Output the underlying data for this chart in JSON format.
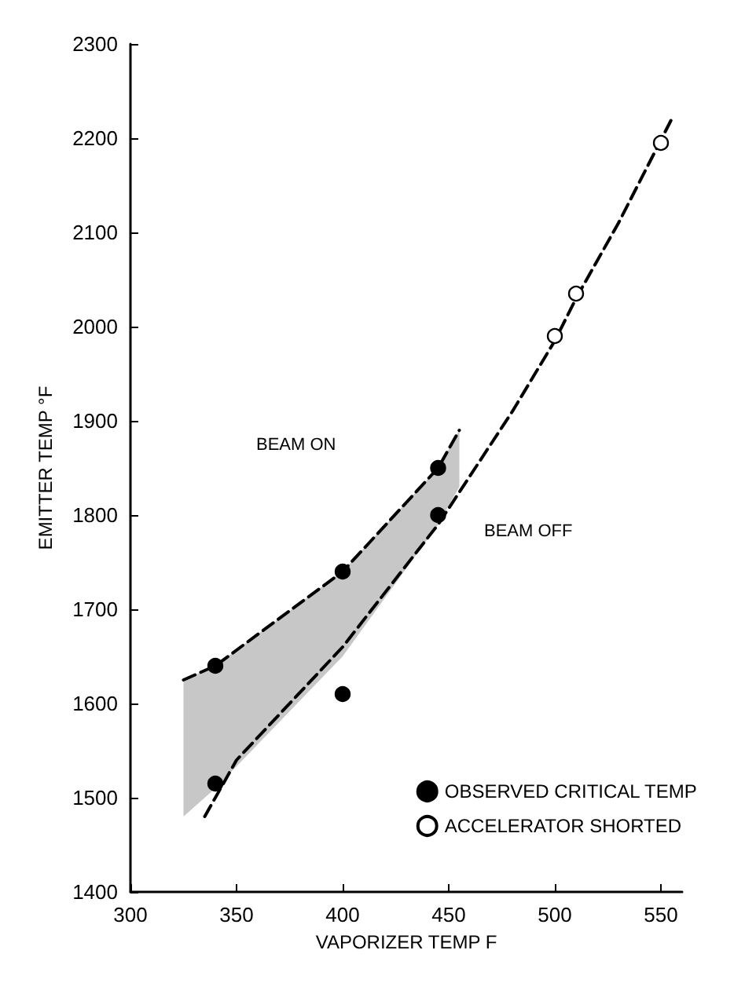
{
  "chart_data": {
    "type": "scatter",
    "xlabel": "VAPORIZER TEMP F",
    "ylabel": "EMITTER TEMP °F",
    "xlim": [
      300,
      560
    ],
    "xticks": [
      300,
      350,
      400,
      450,
      500,
      550
    ],
    "ylim": [
      1400,
      2300
    ],
    "yticks": [
      1400,
      1500,
      1600,
      1700,
      1800,
      1900,
      2000,
      2100,
      2200,
      2300
    ],
    "grid": false,
    "legend": "bottom right",
    "series": [
      {
        "type": "line",
        "color": "#000000",
        "line_style": "dashed",
        "marker": "none",
        "x": [
          325,
          340,
          400,
          445,
          455
        ],
        "values": [
          1625,
          1640,
          1740,
          1850,
          1890
        ],
        "lower": [
          1480,
          1510,
          1650,
          1790,
          1830
        ],
        "upper": [
          1625,
          1640,
          1740,
          1850,
          1890
        ]
      },
      {
        "type": "line",
        "color": "#000000",
        "line_style": "dashed",
        "marker": "none",
        "x": [
          335,
          350,
          400,
          445,
          480,
          500,
          510,
          530,
          555
        ],
        "values": [
          1480,
          1540,
          1660,
          1790,
          1910,
          1985,
          2030,
          2110,
          2220
        ]
      },
      {
        "name": "OBSERVED CRITICAL TEMP",
        "color": "#000000",
        "marker": "circle",
        "x": [
          340,
          340,
          400,
          400,
          445,
          445
        ],
        "values": [
          1640,
          1515,
          1740,
          1610,
          1850,
          1800
        ]
      },
      {
        "name": "ACCELERATOR SHORTED",
        "color": "#ffffff",
        "marker": "circle",
        "x": [
          500,
          510,
          550
        ],
        "values": [
          1990,
          2035,
          2195
        ]
      }
    ],
    "annotations": [
      "BEAM ON",
      "BEAM OFF"
    ]
  }
}
